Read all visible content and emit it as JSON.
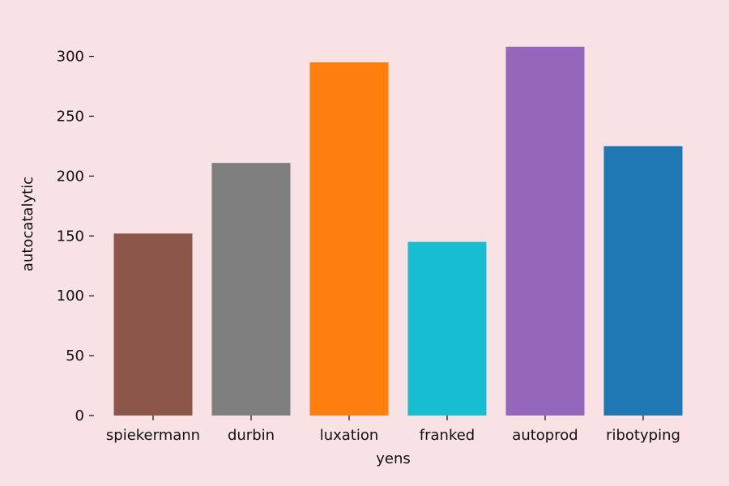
{
  "chart_data": {
    "type": "bar",
    "xlabel": "yens",
    "ylabel": "autocatalytic",
    "categories": [
      "spiekermann",
      "durbin",
      "luxation",
      "franked",
      "autoprod",
      "ribotyping"
    ],
    "values": [
      152,
      211,
      295,
      145,
      308,
      225
    ],
    "colors": [
      "#8c564b",
      "#7f7f7f",
      "#ff7f0e",
      "#17becf",
      "#9467bd",
      "#1f77b4"
    ],
    "ylim": [
      0,
      320
    ],
    "yticks": [
      0,
      50,
      100,
      150,
      200,
      250,
      300
    ],
    "grid": false,
    "legend": false
  }
}
